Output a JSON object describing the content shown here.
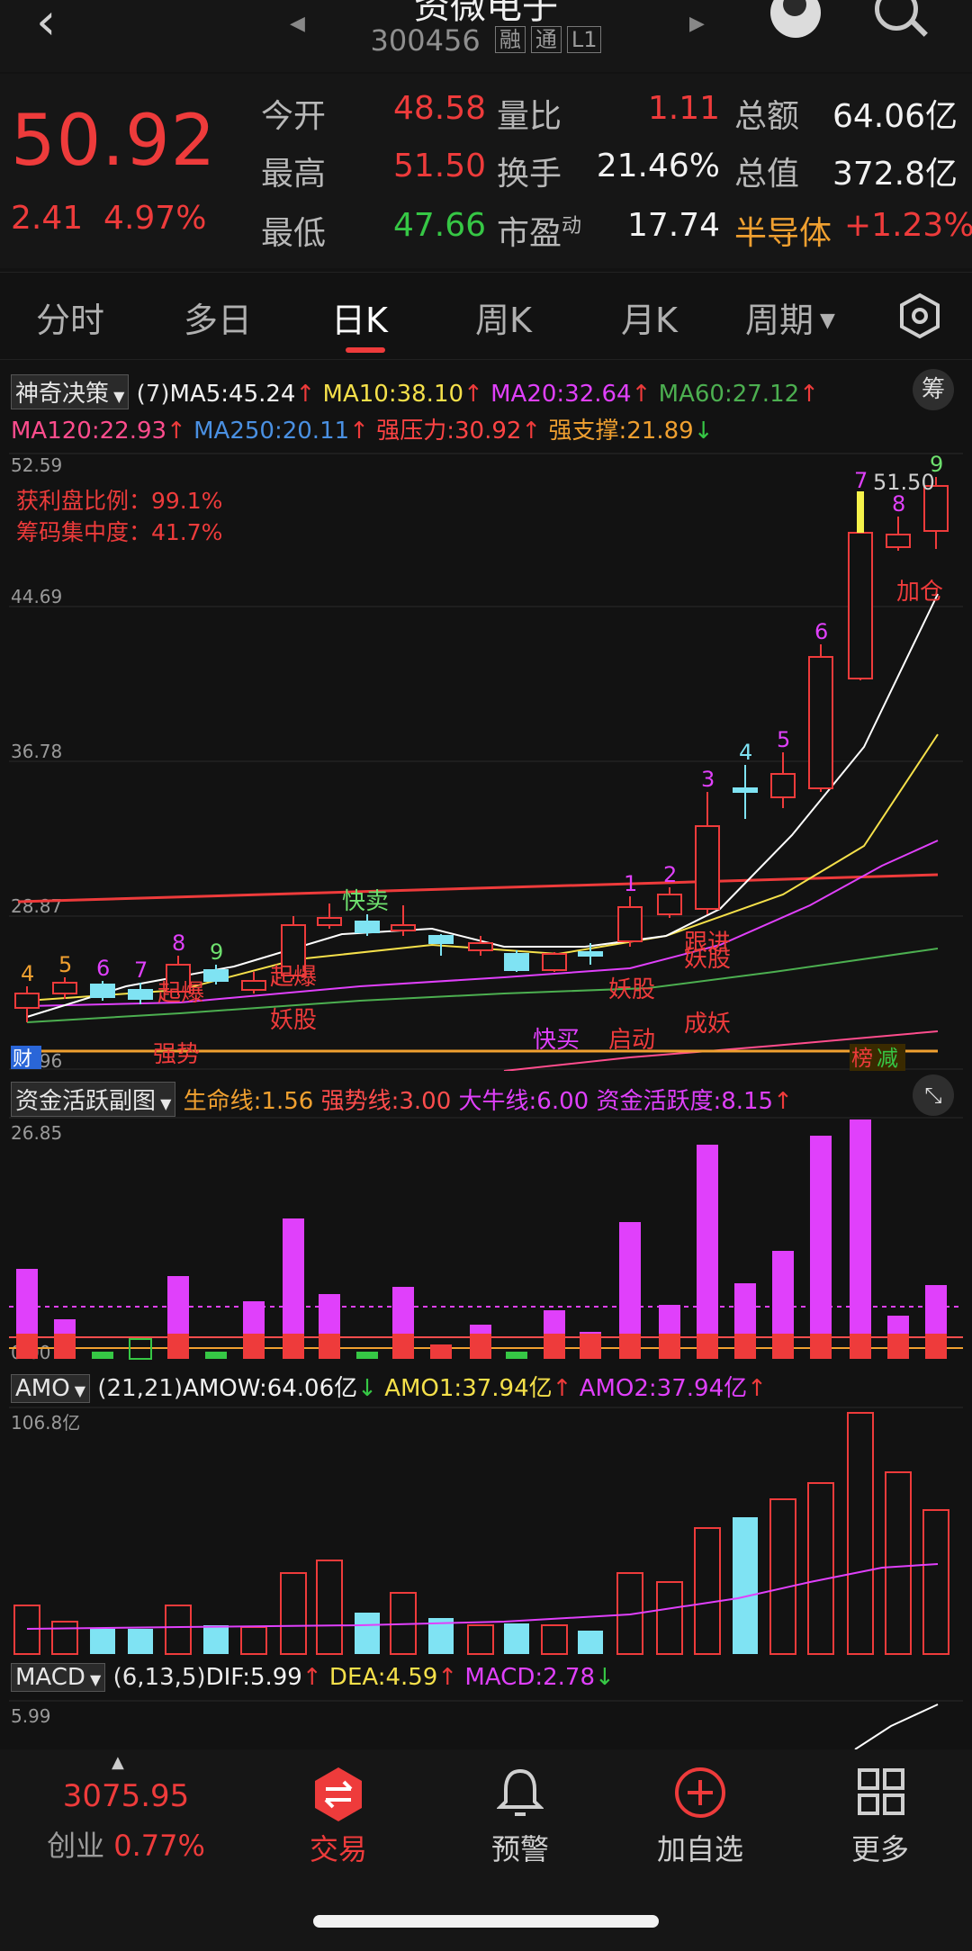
{
  "header": {
    "title": "资微电子",
    "code": "300456",
    "tags": [
      "融",
      "通",
      "L1"
    ]
  },
  "quote": {
    "price": "50.92",
    "change": "2.41",
    "change_pct": "4.97%",
    "stats": [
      {
        "label": "今开",
        "value": "48.58",
        "color": "#ee3b3b"
      },
      {
        "label": "最高",
        "value": "51.50",
        "color": "#ee3b3b"
      },
      {
        "label": "最低",
        "value": "47.66",
        "color": "#36c745"
      },
      {
        "label": "量比",
        "value": "1.11",
        "color": "#ee3b3b"
      },
      {
        "label": "换手",
        "value": "21.46%",
        "color": "#f2f2f2"
      },
      {
        "label": "市盈",
        "sup": "动",
        "value": "17.74",
        "color": "#f2f2f2"
      },
      {
        "label": "总额",
        "value": "64.06亿",
        "color": "#f2f2f2"
      },
      {
        "label": "总值",
        "value": "372.8亿",
        "color": "#f2f2f2"
      }
    ],
    "sector": {
      "name": "半导体",
      "change": "+1.23%"
    }
  },
  "tabs": [
    "分时",
    "多日",
    "日K",
    "周K",
    "月K",
    "周期"
  ],
  "active_tab": "日K",
  "main_indicator": {
    "name": "神奇决策",
    "param": "(7)",
    "items_line1": [
      {
        "text": "MA5:45.24",
        "color": "#f2f2f2"
      },
      {
        "text": "MA10:38.10",
        "color": "#f5e04a"
      },
      {
        "text": "MA20:32.64",
        "color": "#e040fb"
      },
      {
        "text": "MA60:27.12",
        "color": "#4caf50"
      }
    ],
    "items_line2": [
      {
        "text": "MA120:22.93",
        "color": "#ff4d8d"
      },
      {
        "text": "MA250:20.11",
        "color": "#4a90e2"
      },
      {
        "text": "强压力:30.92",
        "color": "#ff4444"
      },
      {
        "text": "强支撑:21.89",
        "color": "#f0a030"
      }
    ],
    "chip_button": "筹"
  },
  "kline": {
    "y_labels": [
      "52.59",
      "44.69",
      "36.78",
      "28.87",
      "20.96"
    ],
    "profit_ratio": "获利盘比例：99.1%",
    "chip_concentration": "筹码集中度：41.7%",
    "high_label": "51.50",
    "signals": [
      "快卖",
      "起爆",
      "妖股",
      "强势",
      "快买",
      "启动",
      "妖股",
      "跟进",
      "妖股",
      "成妖",
      "加仓",
      "财",
      "榜",
      "减"
    ]
  },
  "fund_indicator": {
    "name": "资金活跃副图",
    "items": [
      {
        "text": "生命线:1.56",
        "color": "#f0a030"
      },
      {
        "text": "强势线:3.00",
        "color": "#ff4d4d"
      },
      {
        "text": "大牛线:6.00",
        "color": "#e040fb"
      },
      {
        "text": "资金活跃度:8.15",
        "color": "#e040fb"
      }
    ],
    "y_max": "26.85",
    "y_min": "0.00"
  },
  "amo_indicator": {
    "name": "AMO",
    "param": "(21,21)",
    "items": [
      {
        "text": "AMOW:64.06亿",
        "color": "#f2f2f2"
      },
      {
        "text": "AMO1:37.94亿",
        "color": "#f5e04a"
      },
      {
        "text": "AMO2:37.94亿",
        "color": "#e040fb"
      }
    ],
    "y_max": "106.8亿"
  },
  "macd_indicator": {
    "name": "MACD",
    "param": "(6,13,5)",
    "items": [
      {
        "text": "DIF:5.99",
        "color": "#f2f2f2"
      },
      {
        "text": "DEA:4.59",
        "color": "#f5e04a"
      },
      {
        "text": "MACD:2.78",
        "color": "#e040fb"
      }
    ],
    "y_max": "5.99"
  },
  "bottom_nav": {
    "index_value": "3075.95",
    "index_name": "创业",
    "index_change": "0.77%",
    "items": [
      "交易",
      "预警",
      "加自选",
      "更多"
    ]
  }
}
